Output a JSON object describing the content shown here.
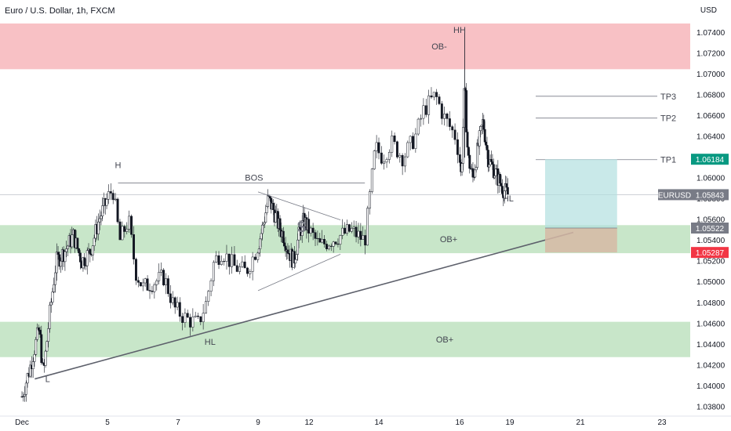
{
  "header": {
    "title": "Euro / U.S. Dollar, 1h, FXCM",
    "currency": "USD"
  },
  "chart_data": {
    "type": "candlestick",
    "instrument": "EURUSD",
    "timeframe": "1h",
    "ylim": [
      1.0372,
      1.0752
    ],
    "y_ticks": [
      1.038,
      1.04,
      1.042,
      1.044,
      1.046,
      1.048,
      1.05,
      1.052,
      1.054,
      1.056,
      1.058,
      1.06,
      1.062,
      1.064,
      1.066,
      1.068,
      1.07,
      1.072,
      1.074
    ],
    "y_tick_labels": [
      "1.03800",
      "1.04000",
      "1.04200",
      "1.04400",
      "1.04600",
      "1.04800",
      "1.05000",
      "1.05200",
      "1.05400",
      "1.05600",
      "1.05800",
      "1.06000",
      "1.06200",
      "1.06400",
      "1.06600",
      "1.06800",
      "1.07000",
      "1.07200",
      "1.07400"
    ],
    "x_ticks": [
      {
        "day": 1,
        "label": "Dec"
      },
      {
        "day": 5,
        "label": "5"
      },
      {
        "day": 7,
        "label": "7"
      },
      {
        "day": 9,
        "label": "9"
      },
      {
        "day": 12,
        "label": "12"
      },
      {
        "day": 14,
        "label": "14"
      },
      {
        "day": 16,
        "label": "16"
      },
      {
        "day": 19,
        "label": "19"
      },
      {
        "day": 21,
        "label": "21"
      },
      {
        "day": 23,
        "label": "23"
      }
    ],
    "price_path": [
      [
        1.0,
        1.039
      ],
      [
        1.4,
        1.042
      ],
      [
        1.8,
        1.0455
      ],
      [
        2.0,
        1.041
      ],
      [
        2.3,
        1.047
      ],
      [
        2.6,
        1.052
      ],
      [
        3.0,
        1.053
      ],
      [
        3.4,
        1.0545
      ],
      [
        3.8,
        1.052
      ],
      [
        4.2,
        1.053
      ],
      [
        4.6,
        1.056
      ],
      [
        4.9,
        1.0575
      ],
      [
        5.15,
        1.059
      ],
      [
        5.35,
        1.054
      ],
      [
        5.6,
        1.056
      ],
      [
        5.8,
        1.051
      ],
      [
        6.0,
        1.0495
      ],
      [
        6.3,
        1.05
      ],
      [
        6.6,
        1.0505
      ],
      [
        6.9,
        1.0475
      ],
      [
        7.2,
        1.0465
      ],
      [
        7.5,
        1.046
      ],
      [
        7.7,
        1.048
      ],
      [
        7.9,
        1.052
      ],
      [
        8.1,
        1.053
      ],
      [
        8.4,
        1.0515
      ],
      [
        8.7,
        1.051
      ],
      [
        9.0,
        1.0535
      ],
      [
        9.3,
        1.0555
      ],
      [
        9.6,
        1.058
      ],
      [
        9.9,
        1.057
      ],
      [
        10.2,
        1.0555
      ],
      [
        10.5,
        1.0545
      ],
      [
        10.8,
        1.053
      ],
      [
        11.1,
        1.052
      ],
      [
        11.4,
        1.0545
      ],
      [
        11.7,
        1.056
      ],
      [
        12.0,
        1.055
      ],
      [
        12.3,
        1.0535
      ],
      [
        12.6,
        1.054
      ],
      [
        12.9,
        1.0545
      ],
      [
        13.2,
        1.055
      ],
      [
        13.6,
        1.054
      ],
      [
        13.9,
        1.063
      ],
      [
        14.1,
        1.062
      ],
      [
        14.3,
        1.0635
      ],
      [
        14.6,
        1.062
      ],
      [
        14.9,
        1.064
      ],
      [
        15.1,
        1.0665
      ],
      [
        15.4,
        1.068
      ],
      [
        15.6,
        1.066
      ],
      [
        15.9,
        1.064
      ],
      [
        16.1,
        1.06
      ],
      [
        16.3,
        1.069
      ],
      [
        16.5,
        1.062
      ],
      [
        16.8,
        1.06
      ],
      [
        17.1,
        1.063
      ],
      [
        17.4,
        1.0655
      ],
      [
        17.7,
        1.062
      ],
      [
        18.0,
        1.061
      ],
      [
        18.3,
        1.06
      ],
      [
        18.6,
        1.059
      ],
      [
        18.9,
        1.0584
      ]
    ],
    "zones": [
      {
        "name": "supply",
        "label": "OB-",
        "low": 1.0705,
        "high": 1.0749,
        "color": "#f8c1c5"
      },
      {
        "name": "demand-upper",
        "label": "OB+",
        "low": 1.0528,
        "high": 1.0555,
        "color": "#c8e6c9"
      },
      {
        "name": "demand-lower",
        "label": "OB+",
        "low": 1.0428,
        "high": 1.0462,
        "color": "#c8e6c9"
      }
    ],
    "annotations": [
      {
        "text": "HH",
        "x": 16.0,
        "y": 1.074
      },
      {
        "text": "H",
        "x": 5.3,
        "y": 1.061
      },
      {
        "text": "BOS",
        "x": 8.9,
        "y": 1.0598
      },
      {
        "text": "HL",
        "x": 7.8,
        "y": 1.044
      },
      {
        "text": "L",
        "x": 2.2,
        "y": 1.0404
      },
      {
        "text": "HL",
        "x": 18.9,
        "y": 1.0578
      }
    ],
    "bos_level": 1.05955,
    "triangle": {
      "upper": [
        [
          9.0,
          1.0587
        ],
        [
          12.9,
          1.056
        ]
      ],
      "lower": [
        [
          9.0,
          1.0492
        ],
        [
          12.9,
          1.0527
        ]
      ]
    },
    "trendline": [
      [
        1.6,
        1.0407
      ],
      [
        20.8,
        1.0548
      ]
    ],
    "targets": [
      {
        "label": "TP3",
        "price": 1.0679
      },
      {
        "label": "TP2",
        "price": 1.0658
      },
      {
        "label": "TP1",
        "price": 1.0618
      }
    ],
    "position": {
      "entry": 1.05522,
      "take_profit": 1.06184,
      "stop_loss": 1.05287,
      "from_day": 20.0,
      "to_day": 21.9
    },
    "price_tags": [
      {
        "label": "1.06184",
        "price": 1.06184,
        "color": "#089981"
      },
      {
        "label": "1.05843",
        "price": 1.05843,
        "color": "#787b86",
        "name": "EURUSD"
      },
      {
        "label": "1.05522",
        "price": 1.05522,
        "color": "#787b86"
      },
      {
        "label": "1.05287",
        "price": 1.05287,
        "color": "#f23645"
      }
    ]
  }
}
